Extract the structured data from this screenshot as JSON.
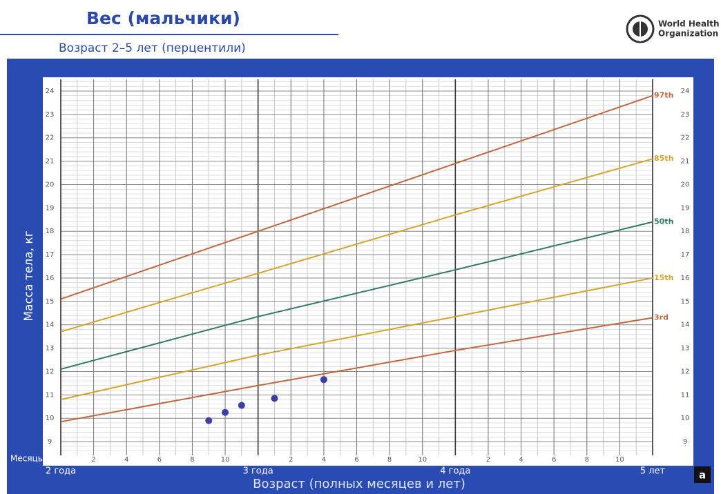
{
  "chart_data": {
    "type": "line",
    "title": "Вес (мальчики)",
    "subtitle": "Возраст 2–5 лет (перцентили)",
    "organization": [
      "World Health",
      "Organization"
    ],
    "ylabel": "Масса тела, кг",
    "xlabel": "Возраст (полных месяцев и лет)",
    "xunit_label": "Месяцы",
    "badge": "a",
    "x": [
      24,
      36,
      48,
      60
    ],
    "series": [
      {
        "name": "97th",
        "color": "#c2673c",
        "values": [
          15.1,
          18.0,
          20.9,
          23.8
        ]
      },
      {
        "name": "85th",
        "color": "#d2a52c",
        "values": [
          13.7,
          16.2,
          18.7,
          21.1
        ]
      },
      {
        "name": "50th",
        "color": "#2f7a5f",
        "values": [
          12.1,
          14.35,
          16.35,
          18.4
        ]
      },
      {
        "name": "15th",
        "color": "#d2a52c",
        "values": [
          10.8,
          12.7,
          14.35,
          16.0
        ]
      },
      {
        "name": "3rd",
        "color": "#c2673c",
        "values": [
          9.85,
          11.4,
          12.9,
          14.3
        ]
      }
    ],
    "points": {
      "color": "#3b3fa8",
      "x": [
        33,
        34,
        35,
        37,
        40
      ],
      "values": [
        9.9,
        10.25,
        10.55,
        10.85,
        11.65
      ]
    },
    "xlim": [
      24,
      60
    ],
    "ylim": [
      8.5,
      24.5
    ],
    "xticks": [
      {
        "value": 24,
        "label": "2 года"
      },
      {
        "value": 26,
        "label": "2"
      },
      {
        "value": 28,
        "label": "4"
      },
      {
        "value": 30,
        "label": "6"
      },
      {
        "value": 32,
        "label": "8"
      },
      {
        "value": 34,
        "label": "10"
      },
      {
        "value": 36,
        "label": "3 года"
      },
      {
        "value": 38,
        "label": "2"
      },
      {
        "value": 40,
        "label": "4"
      },
      {
        "value": 42,
        "label": "6"
      },
      {
        "value": 44,
        "label": "8"
      },
      {
        "value": 46,
        "label": "10"
      },
      {
        "value": 48,
        "label": "4 года"
      },
      {
        "value": 50,
        "label": "2"
      },
      {
        "value": 52,
        "label": "4"
      },
      {
        "value": 54,
        "label": "6"
      },
      {
        "value": 56,
        "label": "8"
      },
      {
        "value": 58,
        "label": "10"
      },
      {
        "value": 60,
        "label": "5 лет"
      }
    ],
    "yticks": [
      9,
      10,
      11,
      12,
      13,
      14,
      15,
      16,
      17,
      18,
      19,
      20,
      21,
      22,
      23,
      24
    ],
    "grid": true
  }
}
